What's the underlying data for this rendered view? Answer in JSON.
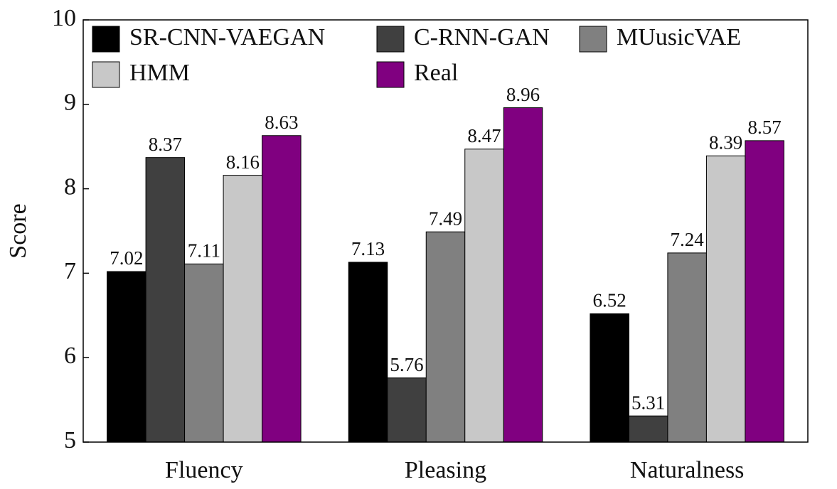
{
  "chart_data": {
    "type": "bar",
    "ylabel": "Score",
    "categories": [
      "Fluency",
      "Pleasing",
      "Naturalness"
    ],
    "series": [
      {
        "name": "SR-CNN-VAEGAN",
        "color": "#000000",
        "values": [
          7.02,
          7.13,
          6.52
        ]
      },
      {
        "name": "C-RNN-GAN",
        "color": "#404040",
        "values": [
          8.37,
          5.76,
          5.31
        ]
      },
      {
        "name": "MUusicVAE",
        "color": "#808080",
        "values": [
          7.11,
          7.49,
          7.24
        ]
      },
      {
        "name": "HMM",
        "color": "#c8c8c8",
        "values": [
          8.16,
          8.47,
          8.39
        ]
      },
      {
        "name": "Real",
        "color": "#800080",
        "values": [
          8.63,
          8.96,
          8.57
        ]
      }
    ],
    "ylim": [
      5,
      10
    ],
    "yticks": [
      5,
      6,
      7,
      8,
      9,
      10
    ],
    "grid": false,
    "legend": "upper left"
  }
}
